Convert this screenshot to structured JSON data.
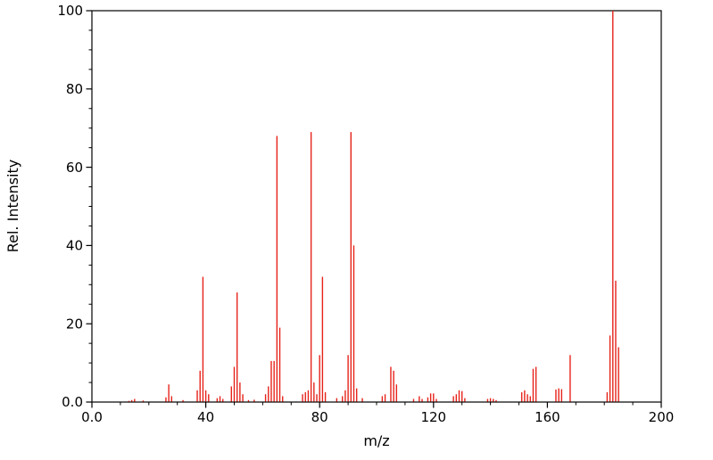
{
  "chart_data": {
    "type": "bar",
    "subtype": "mass-spectrum-stick-plot",
    "title": "",
    "xlabel": "m/z",
    "ylabel": "Rel. Intensity",
    "xlim": [
      0,
      200
    ],
    "ylim": [
      0,
      100
    ],
    "x_ticks": [
      0,
      40,
      80,
      120,
      160,
      200
    ],
    "x_tick_labels": [
      "0.0",
      "40",
      "80",
      "120",
      "160",
      "200"
    ],
    "y_ticks": [
      0,
      20,
      40,
      60,
      80,
      100
    ],
    "y_tick_labels": [
      "0.0",
      "20",
      "40",
      "60",
      "80",
      "100"
    ],
    "x_minor_step": 10,
    "y_minor_step": 5,
    "grid": "off",
    "legend": "none",
    "bar_color": "#e6231a",
    "frame_color": "#000000",
    "background_color": "#ffffff",
    "peaks": [
      [
        13,
        0.3
      ],
      [
        14,
        0.5
      ],
      [
        15,
        0.8
      ],
      [
        18,
        0.4
      ],
      [
        26,
        1.2
      ],
      [
        27,
        4.5
      ],
      [
        28,
        1.5
      ],
      [
        32,
        0.5
      ],
      [
        37,
        3
      ],
      [
        38,
        8
      ],
      [
        39,
        32
      ],
      [
        40,
        3
      ],
      [
        41,
        2
      ],
      [
        44,
        1
      ],
      [
        45,
        1.5
      ],
      [
        46,
        0.8
      ],
      [
        49,
        4
      ],
      [
        50,
        9
      ],
      [
        51,
        28
      ],
      [
        52,
        5
      ],
      [
        53,
        2
      ],
      [
        55,
        0.5
      ],
      [
        57,
        0.6
      ],
      [
        61,
        2
      ],
      [
        62,
        4
      ],
      [
        63,
        10.5
      ],
      [
        64,
        10.5
      ],
      [
        65,
        68
      ],
      [
        66,
        19
      ],
      [
        67,
        1.5
      ],
      [
        74,
        2
      ],
      [
        75,
        2.5
      ],
      [
        76,
        3
      ],
      [
        77,
        69
      ],
      [
        78,
        5
      ],
      [
        79,
        2
      ],
      [
        80,
        12
      ],
      [
        81,
        32
      ],
      [
        82,
        2.5
      ],
      [
        86,
        1
      ],
      [
        88,
        1.5
      ],
      [
        89,
        3
      ],
      [
        90,
        12
      ],
      [
        91,
        69
      ],
      [
        92,
        40
      ],
      [
        93,
        3.5
      ],
      [
        95,
        1
      ],
      [
        102,
        1.5
      ],
      [
        103,
        2
      ],
      [
        105,
        9
      ],
      [
        106,
        8
      ],
      [
        107,
        4.5
      ],
      [
        113,
        0.8
      ],
      [
        115,
        1.5
      ],
      [
        116,
        0.8
      ],
      [
        118,
        1.2
      ],
      [
        119,
        2.2
      ],
      [
        120,
        2.2
      ],
      [
        121,
        0.8
      ],
      [
        127,
        1.5
      ],
      [
        128,
        2
      ],
      [
        129,
        3
      ],
      [
        130,
        2.8
      ],
      [
        131,
        1
      ],
      [
        139,
        0.8
      ],
      [
        140,
        1
      ],
      [
        141,
        0.8
      ],
      [
        142,
        0.5
      ],
      [
        151,
        2.5
      ],
      [
        152,
        3
      ],
      [
        153,
        2
      ],
      [
        154,
        1.5
      ],
      [
        155,
        8.5
      ],
      [
        156,
        9
      ],
      [
        163,
        3.2
      ],
      [
        164,
        3.5
      ],
      [
        165,
        3.3
      ],
      [
        168,
        12
      ],
      [
        181,
        2.5
      ],
      [
        182,
        17
      ],
      [
        183,
        100
      ],
      [
        184,
        31
      ],
      [
        185,
        14
      ]
    ]
  }
}
